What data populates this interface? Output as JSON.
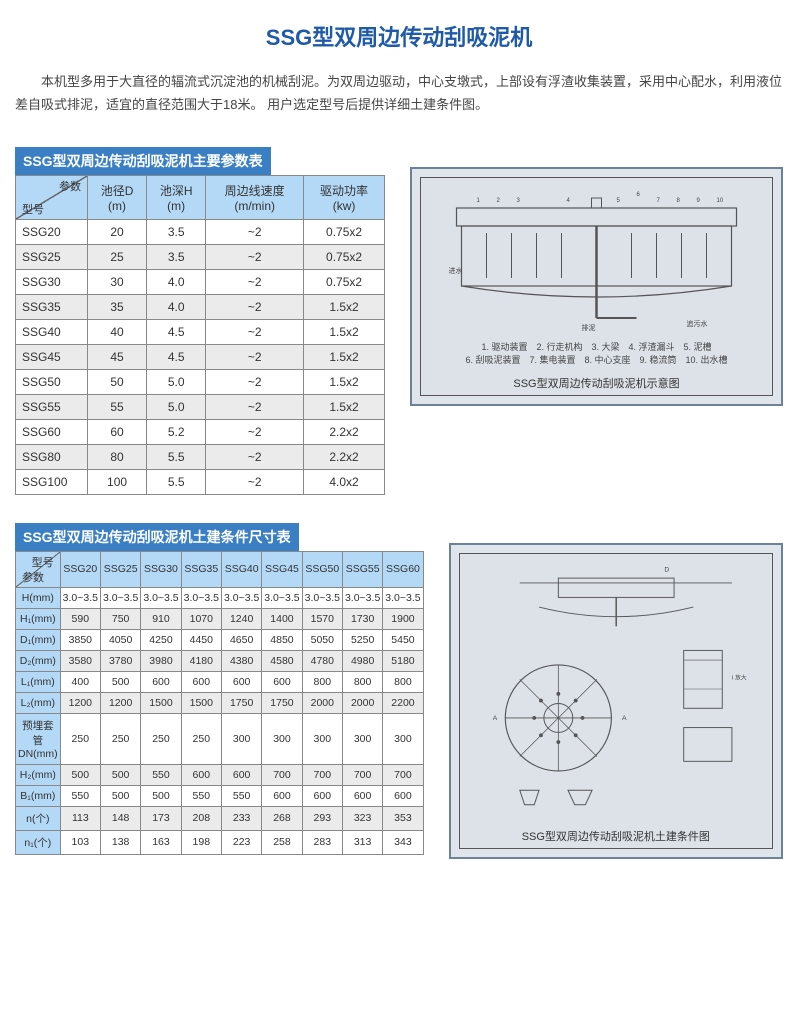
{
  "title": "SSG型双周边传动刮吸泥机",
  "intro": "本机型多用于大直径的辐流式沉淀池的机械刮泥。为双周边驱动，中心支墩式，上部设有浮渣收集装置，采用中心配水，利用液位差自吸式排泥，适宜的直径范围大于18米。\n用户选定型号后提供详细土建条件图。",
  "table1": {
    "header": "SSG型双周边传动刮吸泥机主要参数表",
    "diag_top": "参数",
    "diag_bot": "型号",
    "cols": [
      "池径D\n(m)",
      "池深H\n(m)",
      "周边线速度\n(m/min)",
      "驱动功率\n(kw)"
    ],
    "rows": [
      [
        "SSG20",
        "20",
        "3.5",
        "~2",
        "0.75x2"
      ],
      [
        "SSG25",
        "25",
        "3.5",
        "~2",
        "0.75x2"
      ],
      [
        "SSG30",
        "30",
        "4.0",
        "~2",
        "0.75x2"
      ],
      [
        "SSG35",
        "35",
        "4.0",
        "~2",
        "1.5x2"
      ],
      [
        "SSG40",
        "40",
        "4.5",
        "~2",
        "1.5x2"
      ],
      [
        "SSG45",
        "45",
        "4.5",
        "~2",
        "1.5x2"
      ],
      [
        "SSG50",
        "50",
        "5.0",
        "~2",
        "1.5x2"
      ],
      [
        "SSG55",
        "55",
        "5.0",
        "~2",
        "1.5x2"
      ],
      [
        "SSG60",
        "60",
        "5.2",
        "~2",
        "2.2x2"
      ],
      [
        "SSG80",
        "80",
        "5.5",
        "~2",
        "2.2x2"
      ],
      [
        "SSG100",
        "100",
        "5.5",
        "~2",
        "4.0x2"
      ]
    ]
  },
  "diagram1": {
    "legend": "1. 驱动装置　2. 行走机构　3. 大梁　4. 浮渣漏斗　5. 泥槽\n6. 刮吸泥装置　7. 集电装置　8. 中心支座　9. 稳流筒　10. 出水槽",
    "caption": "SSG型双周边传动刮吸泥机示意图",
    "labels": {
      "l1": "进水",
      "l2": "排泥",
      "l3": "追污水"
    }
  },
  "table2": {
    "header": "SSG型双周边传动刮吸泥机土建条件尺寸表",
    "diag_top": "型号",
    "diag_bot": "参数",
    "cols": [
      "SSG20",
      "SSG25",
      "SSG30",
      "SSG35",
      "SSG40",
      "SSG45",
      "SSG50",
      "SSG55",
      "SSG60"
    ],
    "params": [
      "H(mm)",
      "H₁(mm)",
      "D₁(mm)",
      "D₂(mm)",
      "L₁(mm)",
      "L₂(mm)",
      "预埋套管\nDN(mm)",
      "H₂(mm)",
      "B₁(mm)",
      "n(个)",
      "n₁(个)"
    ],
    "data": [
      [
        "3.0~3.5",
        "3.0~3.5",
        "3.0~3.5",
        "3.0~3.5",
        "3.0~3.5",
        "3.0~3.5",
        "3.0~3.5",
        "3.0~3.5",
        "3.0~3.5"
      ],
      [
        "590",
        "750",
        "910",
        "1070",
        "1240",
        "1400",
        "1570",
        "1730",
        "1900"
      ],
      [
        "3850",
        "4050",
        "4250",
        "4450",
        "4650",
        "4850",
        "5050",
        "5250",
        "5450"
      ],
      [
        "3580",
        "3780",
        "3980",
        "4180",
        "4380",
        "4580",
        "4780",
        "4980",
        "5180"
      ],
      [
        "400",
        "500",
        "600",
        "600",
        "600",
        "600",
        "800",
        "800",
        "800"
      ],
      [
        "1200",
        "1200",
        "1500",
        "1500",
        "1750",
        "1750",
        "2000",
        "2000",
        "2200"
      ],
      [
        "250",
        "250",
        "250",
        "250",
        "300",
        "300",
        "300",
        "300",
        "300"
      ],
      [
        "500",
        "500",
        "550",
        "600",
        "600",
        "700",
        "700",
        "700",
        "700"
      ],
      [
        "550",
        "500",
        "500",
        "550",
        "550",
        "600",
        "600",
        "600",
        "600"
      ],
      [
        "113",
        "148",
        "173",
        "208",
        "233",
        "268",
        "293",
        "323",
        "353"
      ],
      [
        "103",
        "138",
        "163",
        "198",
        "223",
        "258",
        "283",
        "313",
        "343"
      ]
    ]
  },
  "diagram2": {
    "caption": "SSG型双周边传动刮吸泥机土建条件图"
  },
  "colors": {
    "header_blue": "#3a7fc4",
    "cell_blue": "#b3d9f7",
    "title_blue": "#1e5aa8"
  }
}
